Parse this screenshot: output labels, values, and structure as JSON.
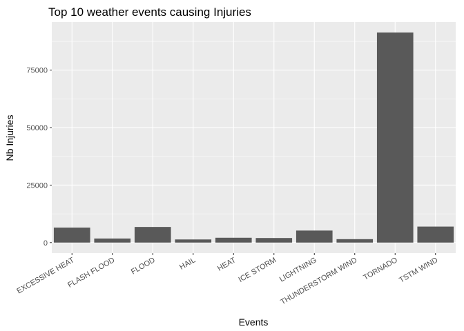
{
  "chart_data": {
    "type": "bar",
    "title": "Top 10 weather events causing Injuries",
    "xlabel": "Events",
    "ylabel": "Nb  Injuries",
    "categories": [
      "EXCESSIVE HEAT",
      "FLASH FLOOD",
      "FLOOD",
      "HAIL",
      "HEAT",
      "ICE STORM",
      "LIGHTNING",
      "THUNDERSTORM WIND",
      "TORNADO",
      "TSTM WIND"
    ],
    "values": [
      6525,
      1777,
      6789,
      1361,
      2100,
      1975,
      5230,
      1488,
      91346,
      6957
    ],
    "yticks": [
      0,
      25000,
      50000,
      75000
    ],
    "ylim": [
      -4567,
      95913
    ],
    "grid": true,
    "bar_color": "#595959",
    "panel_color": "#ebebeb"
  }
}
